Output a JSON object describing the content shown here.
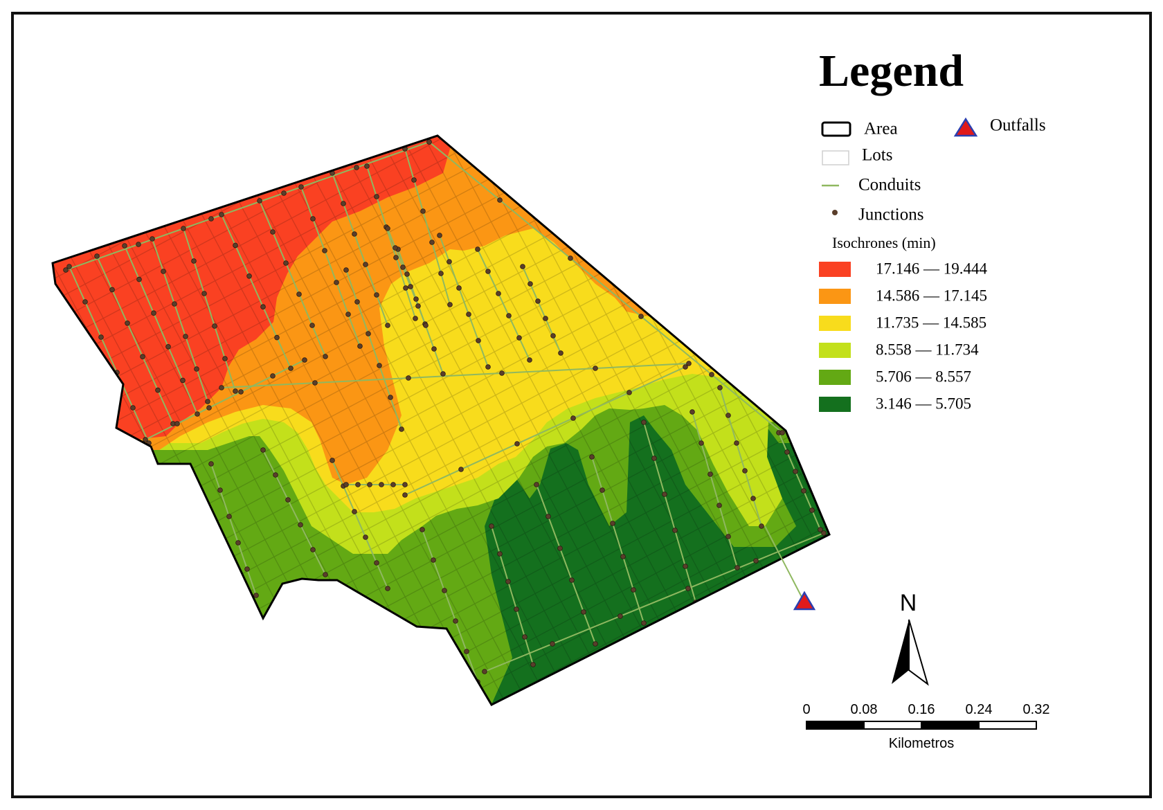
{
  "legend": {
    "title": "Legend",
    "items": {
      "area": "Area",
      "outfalls": "Outfalls",
      "lots": "Lots",
      "conduits": "Conduits",
      "junctions": "Junctions"
    },
    "isochrones_title": "Isochrones (min)",
    "isochrones": [
      {
        "label": "17.146 — 19.444",
        "color": "#fa4122"
      },
      {
        "label": "14.586 — 17.145",
        "color": "#fb9614"
      },
      {
        "label": "11.735 — 14.585",
        "color": "#f8dc1c"
      },
      {
        "label": "8.558 — 11.734",
        "color": "#c3e01b"
      },
      {
        "label": "5.706 — 8.557",
        "color": "#63a914"
      },
      {
        "label": "3.146 — 5.705",
        "color": "#14701e"
      }
    ]
  },
  "colors": {
    "conduit": "#8fb860",
    "junction": "#5a3e2b",
    "outfall_fill": "#e01a1a",
    "outfall_stroke": "#2b3fb0",
    "boundary": "#000000"
  },
  "north_arrow": {
    "label": "N"
  },
  "scale_bar": {
    "ticks": [
      "0",
      "0.08",
      "0.16",
      "0.24",
      "0.32"
    ],
    "unit": "Kilometros"
  }
}
